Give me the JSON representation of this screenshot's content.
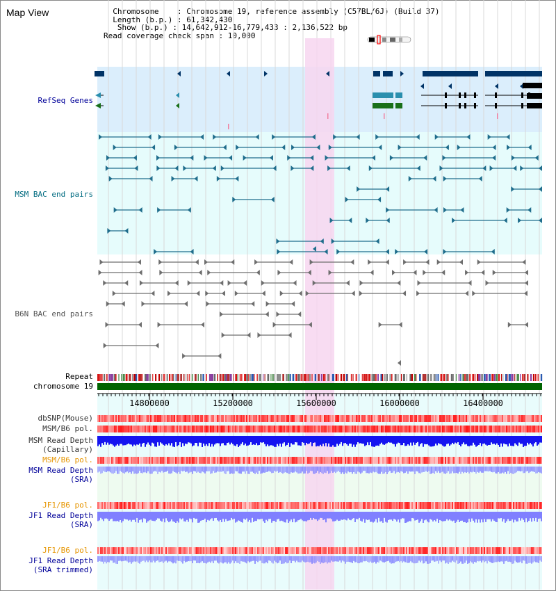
{
  "title": "Map View",
  "info": {
    "line1": "  Chromosome    : Chromosome 19, reference assembly (C57BL/6J) (Build 37)",
    "line2": "  Length (b.p.) : 61,342,430",
    "line3": "   Show (b.p.) : 14,642,912-16,779,433 : 2,136,522 bp",
    "line4": "Read coverage check span : 10,000"
  },
  "tracks": {
    "refseq": "RefSeq Genes",
    "msm_bac": "MSM BAC end pairs",
    "b6n_bac": "B6N BAC end pairs",
    "repeat": "Repeat",
    "chromosome": "chromosome 19",
    "dbsnp": "dbSNP(Mouse)",
    "msm_b6_pol": "MSM/B6 pol.",
    "msm_depth_cap_1": "MSM Read Depth",
    "msm_depth_cap_2": "(Capillary)",
    "msm_b6_pol_sra": "MSM/B6 pol.",
    "msm_depth_sra_1": "MSM Read Depth",
    "msm_depth_sra_2": "(SRA)",
    "jf1_pol_1": "JF1/B6 pol.",
    "jf1_depth_sra_1": "JF1 Read Depth",
    "jf1_depth_sra_2": "(SRA)",
    "jf1_pol_2": "JF1/B6 pol.",
    "jf1_depth_trim_1": "JF1 Read Depth",
    "jf1_depth_trim_2": "(SRA trimmed)"
  },
  "axis": {
    "ticks": [
      "14800000",
      "15200000",
      "15600000",
      "16000000",
      "16400000"
    ]
  },
  "colors": {
    "refseq_bg": "#dbeefc",
    "msm_bg": "#e6fcfc",
    "lower_bg": "#e9fcfc",
    "highlight": "#f7d6f0",
    "gene": "#003366",
    "msm_pair": "#1f6d8c",
    "b6n_pair": "#6e6e6e",
    "chromosome": "#006400",
    "label_navy": "#000099",
    "label_teal": "#006b80",
    "label_gray": "#555555",
    "label_orange": "#e69500",
    "depth_blue": "#1414f0",
    "depth_light": "#8080ff"
  }
}
